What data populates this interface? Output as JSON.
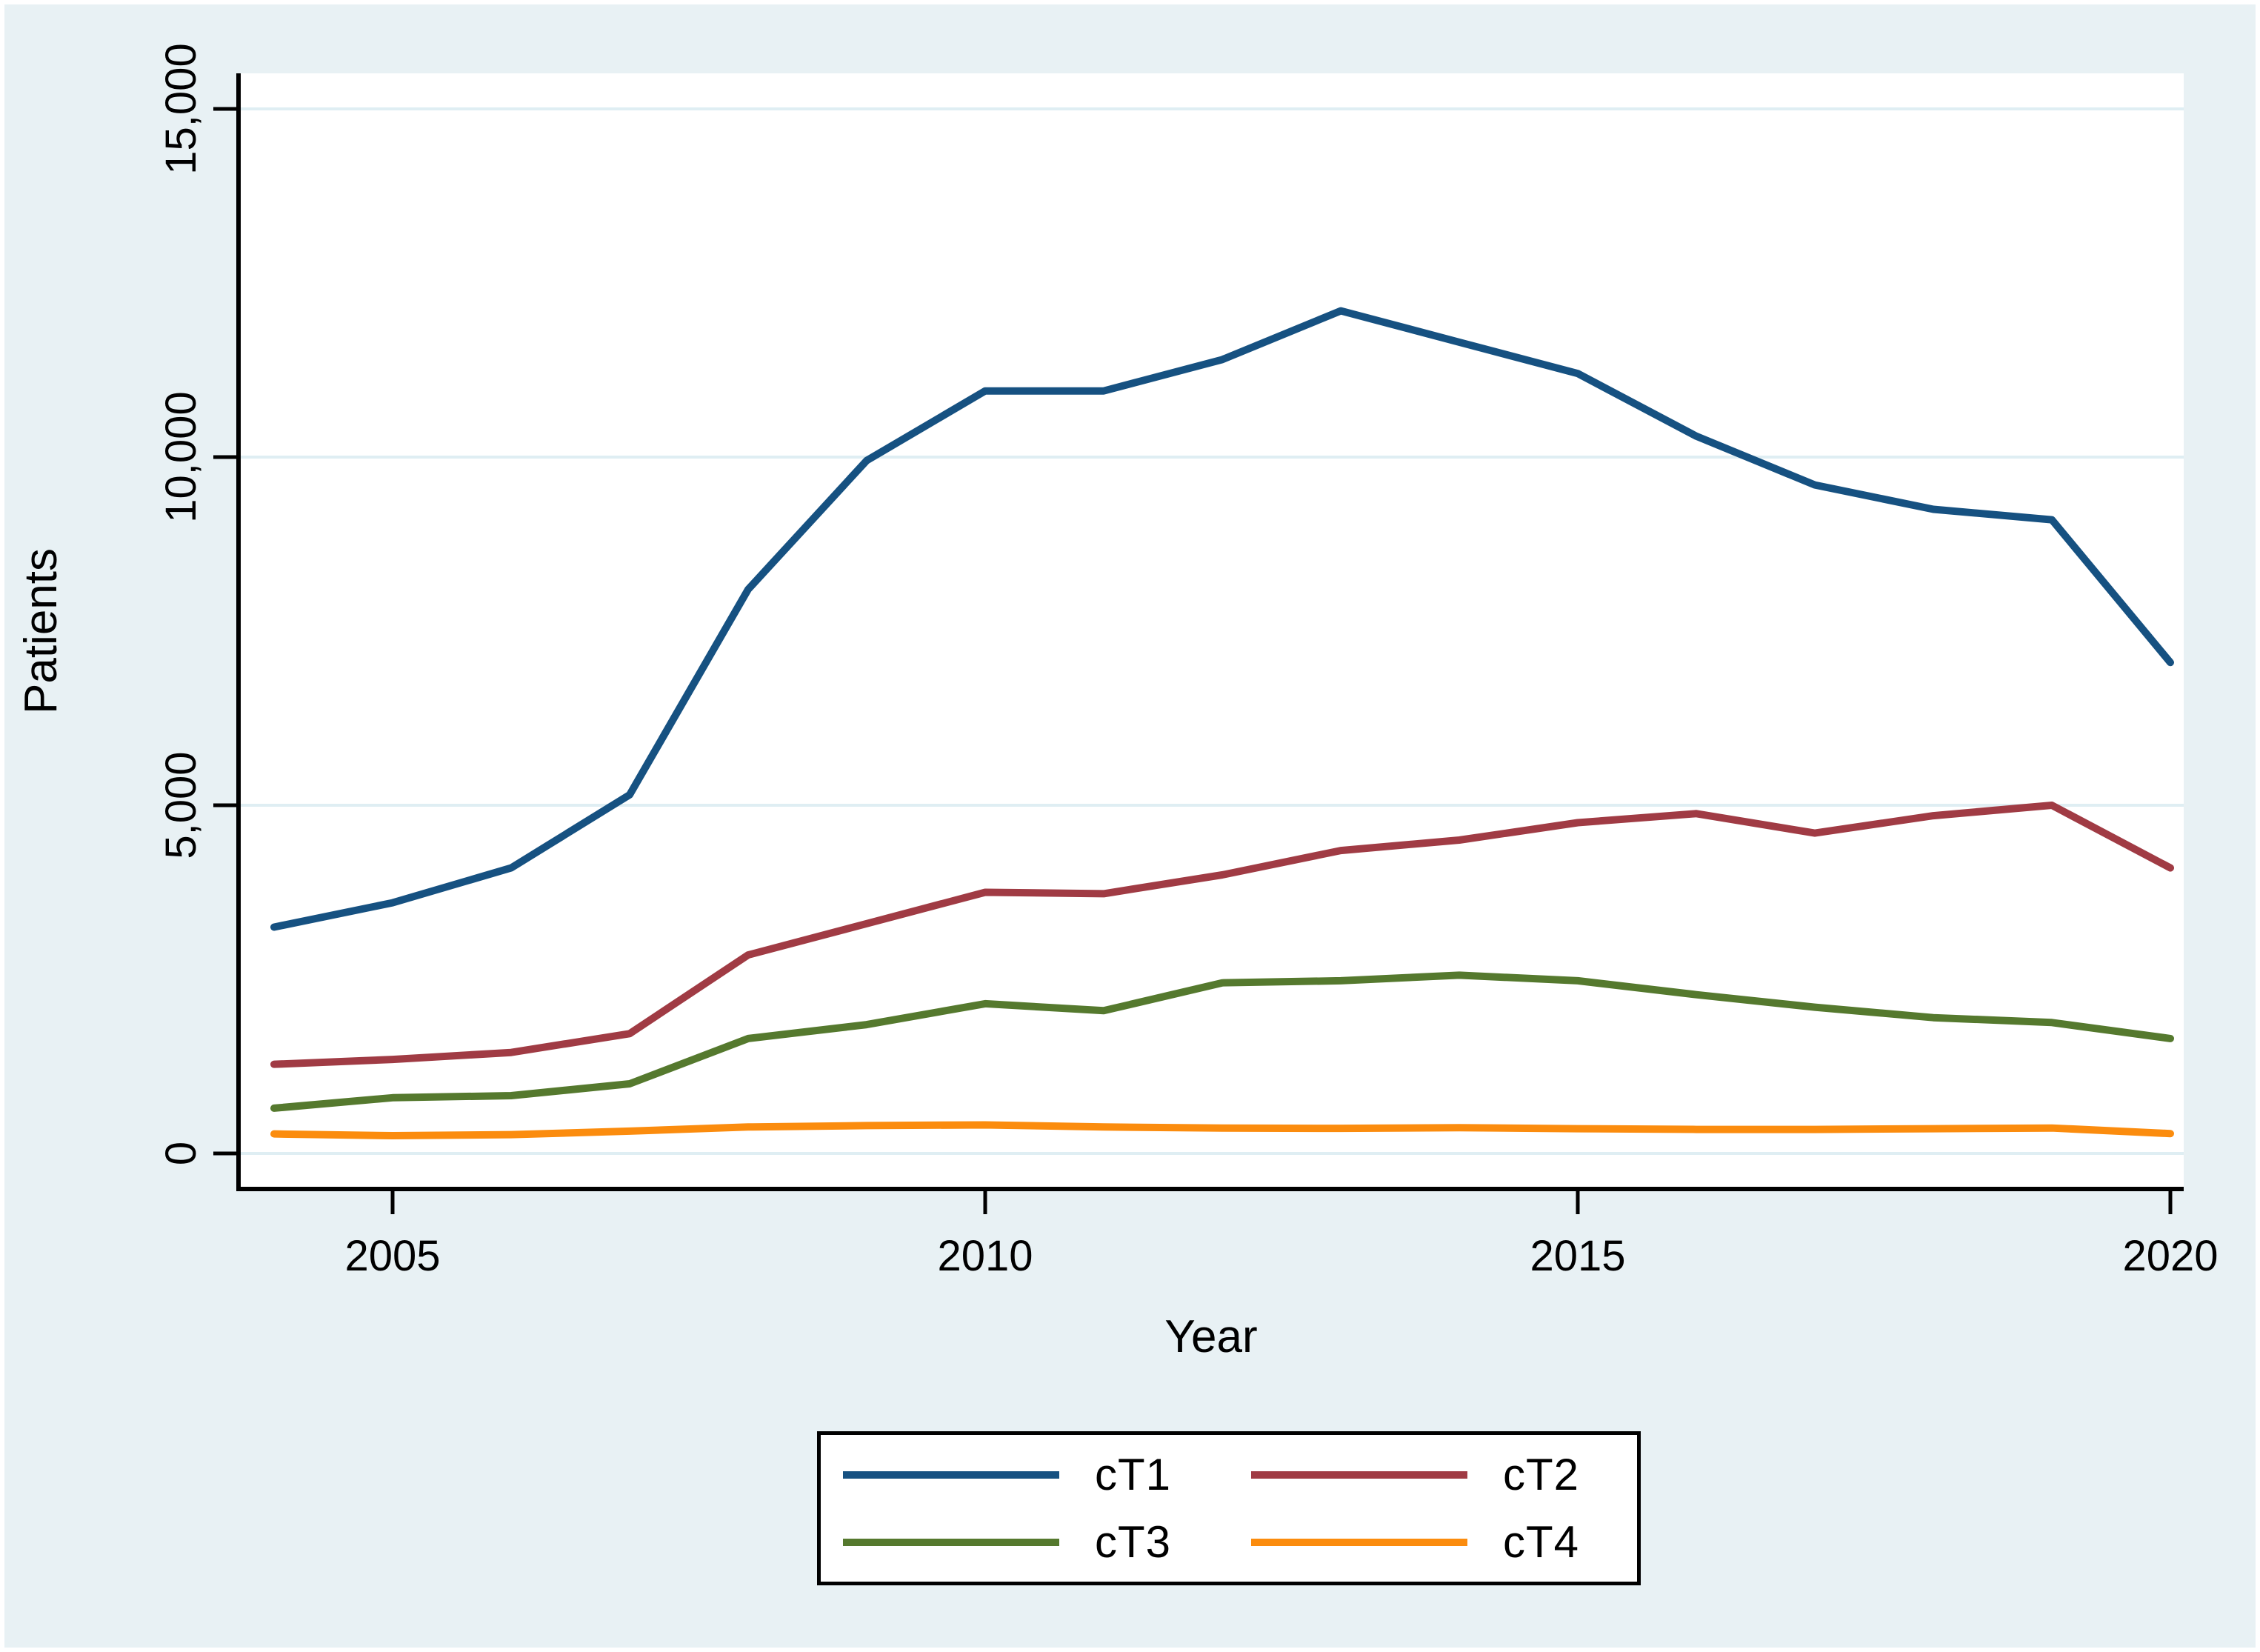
{
  "figure": {
    "background_color": "#e8f1f4",
    "plot_background_color": "#ffffff",
    "grid_color": "#dfeef3",
    "axis_color": "#000000",
    "text_color": "#000000"
  },
  "axes": {
    "y": {
      "title": "Patients",
      "tick_values": [
        0,
        5000,
        10000,
        15000
      ],
      "tick_labels": [
        "0",
        "5,000",
        "10,000",
        "15,000"
      ],
      "range": [
        0,
        15500
      ],
      "grid": true
    },
    "x": {
      "title": "Year",
      "tick_values": [
        2005,
        2010,
        2015,
        2020
      ],
      "tick_labels": [
        "2005",
        "2010",
        "2015",
        "2020"
      ],
      "range": [
        2004,
        2020
      ],
      "grid": false
    }
  },
  "legend": {
    "position": "bottom-center",
    "entries": [
      {
        "label": "cT1",
        "color": "#165181"
      },
      {
        "label": "cT2",
        "color": "#a03b44"
      },
      {
        "label": "cT3",
        "color": "#55792e"
      },
      {
        "label": "cT4",
        "color": "#fb8c0e"
      }
    ]
  },
  "chart_data": {
    "type": "line",
    "title": "",
    "xlabel": "Year",
    "ylabel": "Patients",
    "x": [
      2004,
      2005,
      2006,
      2007,
      2008,
      2009,
      2010,
      2011,
      2012,
      2013,
      2014,
      2015,
      2016,
      2017,
      2018,
      2019,
      2020
    ],
    "series": [
      {
        "name": "cT1",
        "color": "#165181",
        "values": [
          3250,
          3600,
          4100,
          5150,
          8100,
          9950,
          10950,
          10950,
          11400,
          12100,
          11650,
          11200,
          10300,
          9600,
          9250,
          9100,
          7050
        ]
      },
      {
        "name": "cT2",
        "color": "#a03b44",
        "values": [
          1280,
          1350,
          1450,
          1720,
          2850,
          3300,
          3750,
          3730,
          4000,
          4350,
          4500,
          4750,
          4880,
          4600,
          4850,
          5000,
          4100
        ]
      },
      {
        "name": "cT3",
        "color": "#55792e",
        "values": [
          650,
          800,
          830,
          1000,
          1650,
          1850,
          2150,
          2050,
          2450,
          2480,
          2560,
          2480,
          2280,
          2100,
          1950,
          1880,
          1650
        ]
      },
      {
        "name": "cT4",
        "color": "#fb8c0e",
        "values": [
          280,
          255,
          270,
          320,
          380,
          400,
          410,
          380,
          365,
          360,
          370,
          355,
          345,
          345,
          355,
          365,
          285
        ]
      }
    ],
    "ylim": [
      0,
      15500
    ],
    "xlim": [
      2003.7,
      2020.12
    ],
    "legend_position": "bottom",
    "grid": "horizontal"
  }
}
